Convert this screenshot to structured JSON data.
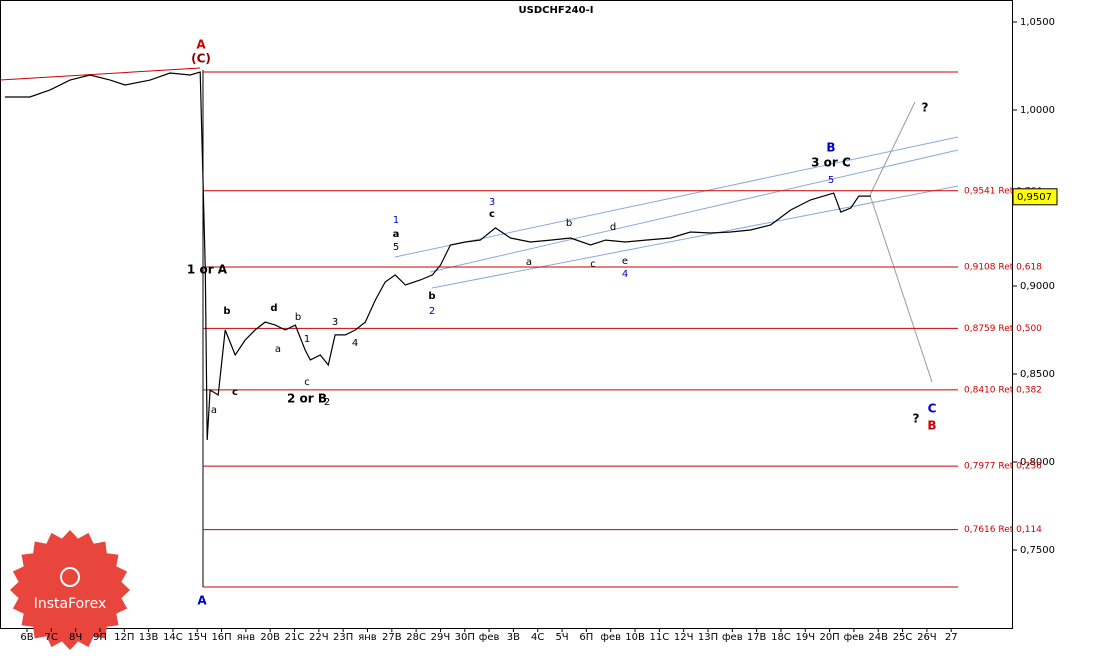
{
  "chart_data": {
    "type": "line",
    "title": "USDCHF240-I",
    "logo": "InstaForex",
    "xlim": [
      -1.11,
      40.5
    ],
    "ylim": [
      0.7057,
      1.0625
    ],
    "xticks": [
      {
        "value": 0,
        "label": "6В"
      },
      {
        "value": 1,
        "label": "7С"
      },
      {
        "value": 2,
        "label": "8Ч"
      },
      {
        "value": 3,
        "label": "9П"
      },
      {
        "value": 4,
        "label": "12П"
      },
      {
        "value": 5,
        "label": "13В"
      },
      {
        "value": 6,
        "label": "14С"
      },
      {
        "value": 7,
        "label": "15Ч"
      },
      {
        "value": 8,
        "label": "16П"
      },
      {
        "value": 9,
        "label": "янв"
      },
      {
        "value": 10,
        "label": "20В"
      },
      {
        "value": 11,
        "label": "21С"
      },
      {
        "value": 12,
        "label": "22Ч"
      },
      {
        "value": 13,
        "label": "23П"
      },
      {
        "value": 14,
        "label": "янв"
      },
      {
        "value": 15,
        "label": "27В"
      },
      {
        "value": 16,
        "label": "28С"
      },
      {
        "value": 17,
        "label": "29Ч"
      },
      {
        "value": 18,
        "label": "30П"
      },
      {
        "value": 19,
        "label": "фев"
      },
      {
        "value": 20,
        "label": "3В"
      },
      {
        "value": 21,
        "label": "4С"
      },
      {
        "value": 22,
        "label": "5Ч"
      },
      {
        "value": 23,
        "label": "6П"
      },
      {
        "value": 24,
        "label": "фев"
      },
      {
        "value": 25,
        "label": "10В"
      },
      {
        "value": 26,
        "label": "11С"
      },
      {
        "value": 27,
        "label": "12Ч"
      },
      {
        "value": 28,
        "label": "13П"
      },
      {
        "value": 29,
        "label": "фев"
      },
      {
        "value": 30,
        "label": "17В"
      },
      {
        "value": 31,
        "label": "18С"
      },
      {
        "value": 32,
        "label": "19Ч"
      },
      {
        "value": 33,
        "label": "20П"
      },
      {
        "value": 34,
        "label": "фев"
      },
      {
        "value": 35,
        "label": "24В"
      },
      {
        "value": 36,
        "label": "25С"
      },
      {
        "value": 37,
        "label": "26Ч"
      },
      {
        "value": 38,
        "label": "27"
      }
    ],
    "yticks": [
      {
        "value": 1.05,
        "label": "1,0500"
      },
      {
        "value": 1.0,
        "label": "1,0000"
      },
      {
        "value": 0.95,
        "label": "0,9500"
      },
      {
        "value": 0.9,
        "label": "0,9000"
      },
      {
        "value": 0.85,
        "label": "0,8500"
      },
      {
        "value": 0.8,
        "label": "0,8000"
      },
      {
        "value": 0.75,
        "label": "0,7500"
      }
    ],
    "series": [
      {
        "name": "USDCHF",
        "color": "#000000",
        "x": [
          -0.91,
          0.12,
          0.95,
          1.77,
          2.59,
          3.42,
          4.03,
          5.06,
          5.88,
          6.71,
          7.12,
          7.33,
          7.41,
          7.53,
          7.86,
          8.15,
          8.56,
          8.97,
          9.38,
          9.79,
          10.21,
          10.62,
          11.03,
          11.44,
          11.65,
          12.06,
          12.39,
          12.67,
          13.09,
          13.5,
          13.91,
          14.32,
          14.73,
          15.14,
          15.56,
          16.17,
          16.67,
          17.0,
          17.41,
          18.02,
          18.64,
          19.26,
          19.88,
          20.7,
          21.52,
          22.35,
          23.17,
          23.79,
          24.61,
          25.43,
          26.46,
          27.28,
          28.11,
          28.93,
          29.75,
          30.58,
          31.4,
          32.22,
          33.17,
          33.46,
          33.87,
          34.2,
          34.69
        ],
        "values": [
          1.0074,
          1.0074,
          1.0114,
          1.017,
          1.0199,
          1.017,
          1.0142,
          1.017,
          1.021,
          1.0199,
          1.0216,
          0.9091,
          0.8125,
          0.8409,
          0.8381,
          0.875,
          0.8608,
          0.8693,
          0.875,
          0.8795,
          0.8778,
          0.875,
          0.8778,
          0.8636,
          0.858,
          0.8608,
          0.8551,
          0.8722,
          0.8722,
          0.875,
          0.8795,
          0.892,
          0.9023,
          0.9063,
          0.9006,
          0.9034,
          0.9063,
          0.9119,
          0.9233,
          0.925,
          0.9261,
          0.933,
          0.9273,
          0.925,
          0.9261,
          0.9273,
          0.9233,
          0.9261,
          0.925,
          0.9261,
          0.9273,
          0.9307,
          0.9301,
          0.9307,
          0.9318,
          0.9347,
          0.9432,
          0.9489,
          0.9528,
          0.942,
          0.9443,
          0.9511,
          0.9511
        ]
      }
    ],
    "levels": [
      {
        "value": 1.0216
      },
      {
        "value": 0.9541,
        "label": "0,9541 Ret 0,764"
      },
      {
        "value": 0.9108,
        "label": "0,9108 Ret 0,618"
      },
      {
        "value": 0.8759,
        "label": "0,8759 Ret 0,500"
      },
      {
        "value": 0.841,
        "label": "0,8410 Ret 0,382"
      },
      {
        "value": 0.7977,
        "label": "0,7977 Ret 0,236"
      },
      {
        "value": 0.7616,
        "label": "0,7616 Ret 0,114"
      },
      {
        "value": 0.729
      }
    ],
    "level_color": "#cc0000",
    "last_price": {
      "value": 0.9507,
      "label": "0,9507"
    },
    "annotations": [
      {
        "text": "A",
        "color": "#cc0000"
      },
      {
        "text": "(C)",
        "color": "#8b0000"
      },
      {
        "text": "1 or A",
        "color": "#000000"
      },
      {
        "text": "a",
        "color": "#000000"
      },
      {
        "text": "b",
        "color": "#000000"
      },
      {
        "text": "c",
        "color": "#000000"
      },
      {
        "text": "d",
        "color": "#000000"
      },
      {
        "text": "a",
        "color": "#000000"
      },
      {
        "text": "b",
        "color": "#000000"
      },
      {
        "text": "1",
        "color": "#000000"
      },
      {
        "text": "c",
        "color": "#000000"
      },
      {
        "text": "2 or B",
        "color": "#000000"
      },
      {
        "text": "2",
        "color": "#000000"
      },
      {
        "text": "3",
        "color": "#000000"
      },
      {
        "text": "4",
        "color": "#000000"
      },
      {
        "text": "1",
        "color": "#0000cc"
      },
      {
        "text": "a",
        "color": "#000000"
      },
      {
        "text": "5",
        "color": "#000000"
      },
      {
        "text": "b",
        "color": "#000000"
      },
      {
        "text": "2",
        "color": "#0000cc"
      },
      {
        "text": "3",
        "color": "#0000cc"
      },
      {
        "text": "c",
        "color": "#000000"
      },
      {
        "text": "b",
        "color": "#000000"
      },
      {
        "text": "a",
        "color": "#000000"
      },
      {
        "text": "c",
        "color": "#000000"
      },
      {
        "text": "d",
        "color": "#000000"
      },
      {
        "text": "e",
        "color": "#000000"
      },
      {
        "text": "4",
        "color": "#0000cc"
      },
      {
        "text": "B",
        "color": "#0000cc"
      },
      {
        "text": "3 or C",
        "color": "#000000"
      },
      {
        "text": "5",
        "color": "#0000cc"
      },
      {
        "text": "?",
        "color": "#000000"
      },
      {
        "text": "?",
        "color": "#000000"
      },
      {
        "text": "C",
        "color": "#0000cc"
      },
      {
        "text": "B",
        "color": "#cc0000"
      },
      {
        "text": "A",
        "color": "#0000cc"
      }
    ]
  }
}
